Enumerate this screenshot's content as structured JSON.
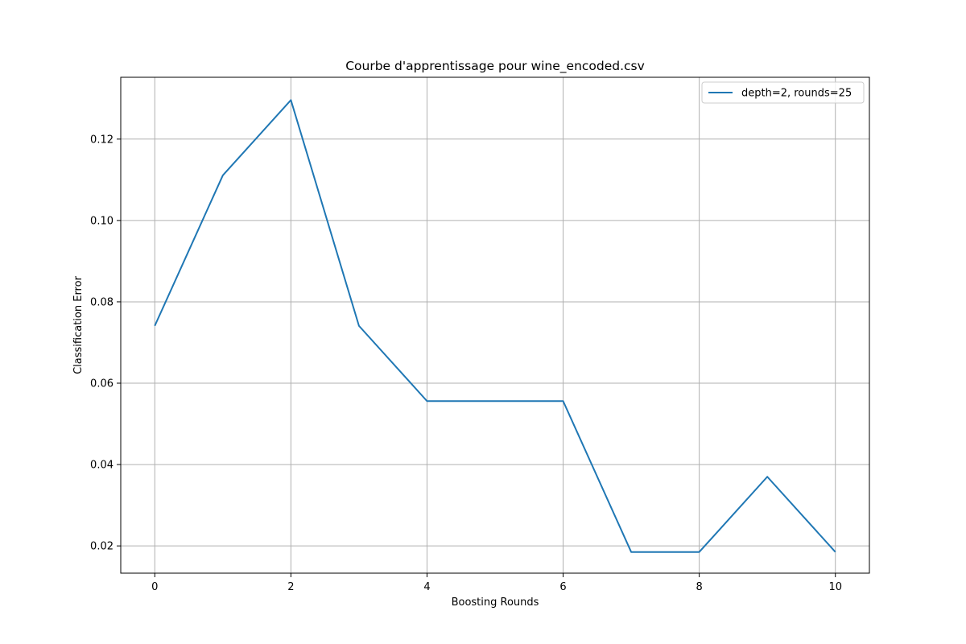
{
  "chart_data": {
    "type": "line",
    "title": "Courbe d'apprentissage pour wine_encoded.csv",
    "xlabel": "Boosting Rounds",
    "ylabel": "Classification Error",
    "xlim": [
      -0.5,
      10.5
    ],
    "ylim": [
      0.0133,
      0.1352
    ],
    "xticks": [
      0,
      2,
      4,
      6,
      8,
      10
    ],
    "xtick_labels": [
      "0",
      "2",
      "4",
      "6",
      "8",
      "10"
    ],
    "yticks": [
      0.02,
      0.04,
      0.06,
      0.08,
      0.1,
      0.12
    ],
    "ytick_labels": [
      "0.02",
      "0.04",
      "0.06",
      "0.08",
      "0.10",
      "0.12"
    ],
    "grid": true,
    "legend_position": "top-right",
    "series": [
      {
        "name": "depth=2, rounds=25",
        "color": "#1f77b4",
        "x": [
          0,
          1,
          2,
          3,
          4,
          5,
          6,
          7,
          8,
          9,
          10
        ],
        "y": [
          0.0741,
          0.1111,
          0.1296,
          0.0741,
          0.0556,
          0.0556,
          0.0556,
          0.0185,
          0.0185,
          0.037,
          0.0185
        ]
      }
    ]
  }
}
